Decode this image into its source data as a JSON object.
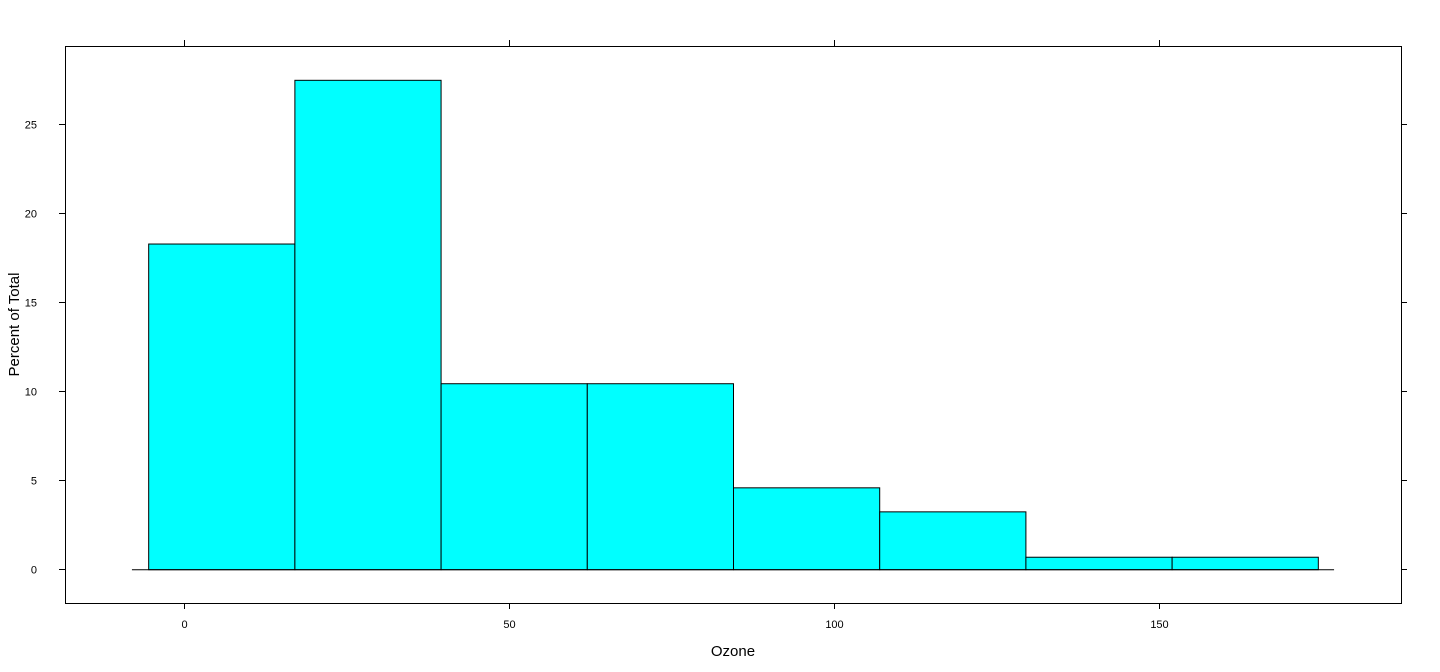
{
  "chart_data": {
    "type": "bar",
    "subtype": "histogram",
    "xlabel": "Ozone",
    "ylabel": "Percent of Total",
    "bins": [
      {
        "start": -5.5,
        "end": 17.0,
        "value": 18.3
      },
      {
        "start": 17.0,
        "end": 39.5,
        "value": 27.5
      },
      {
        "start": 39.5,
        "end": 62.0,
        "value": 10.45
      },
      {
        "start": 62.0,
        "end": 84.5,
        "value": 10.45
      },
      {
        "start": 84.5,
        "end": 107.0,
        "value": 4.6
      },
      {
        "start": 107.0,
        "end": 129.5,
        "value": 3.25
      },
      {
        "start": 129.5,
        "end": 152.0,
        "value": 0.7
      },
      {
        "start": 152.0,
        "end": 174.5,
        "value": 0.7
      }
    ],
    "xlim": [
      -18.3,
      187.3
    ],
    "ylim": [
      -1.9,
      29.4
    ],
    "x_ticks": [
      0,
      50,
      100,
      150
    ],
    "y_ticks": [
      0,
      5,
      10,
      15,
      20,
      25
    ],
    "baseline_range": [
      -8,
      177
    ],
    "bar_color": "#00FFFF",
    "stroke_color": "#000000",
    "grid": false,
    "legend": "none"
  }
}
